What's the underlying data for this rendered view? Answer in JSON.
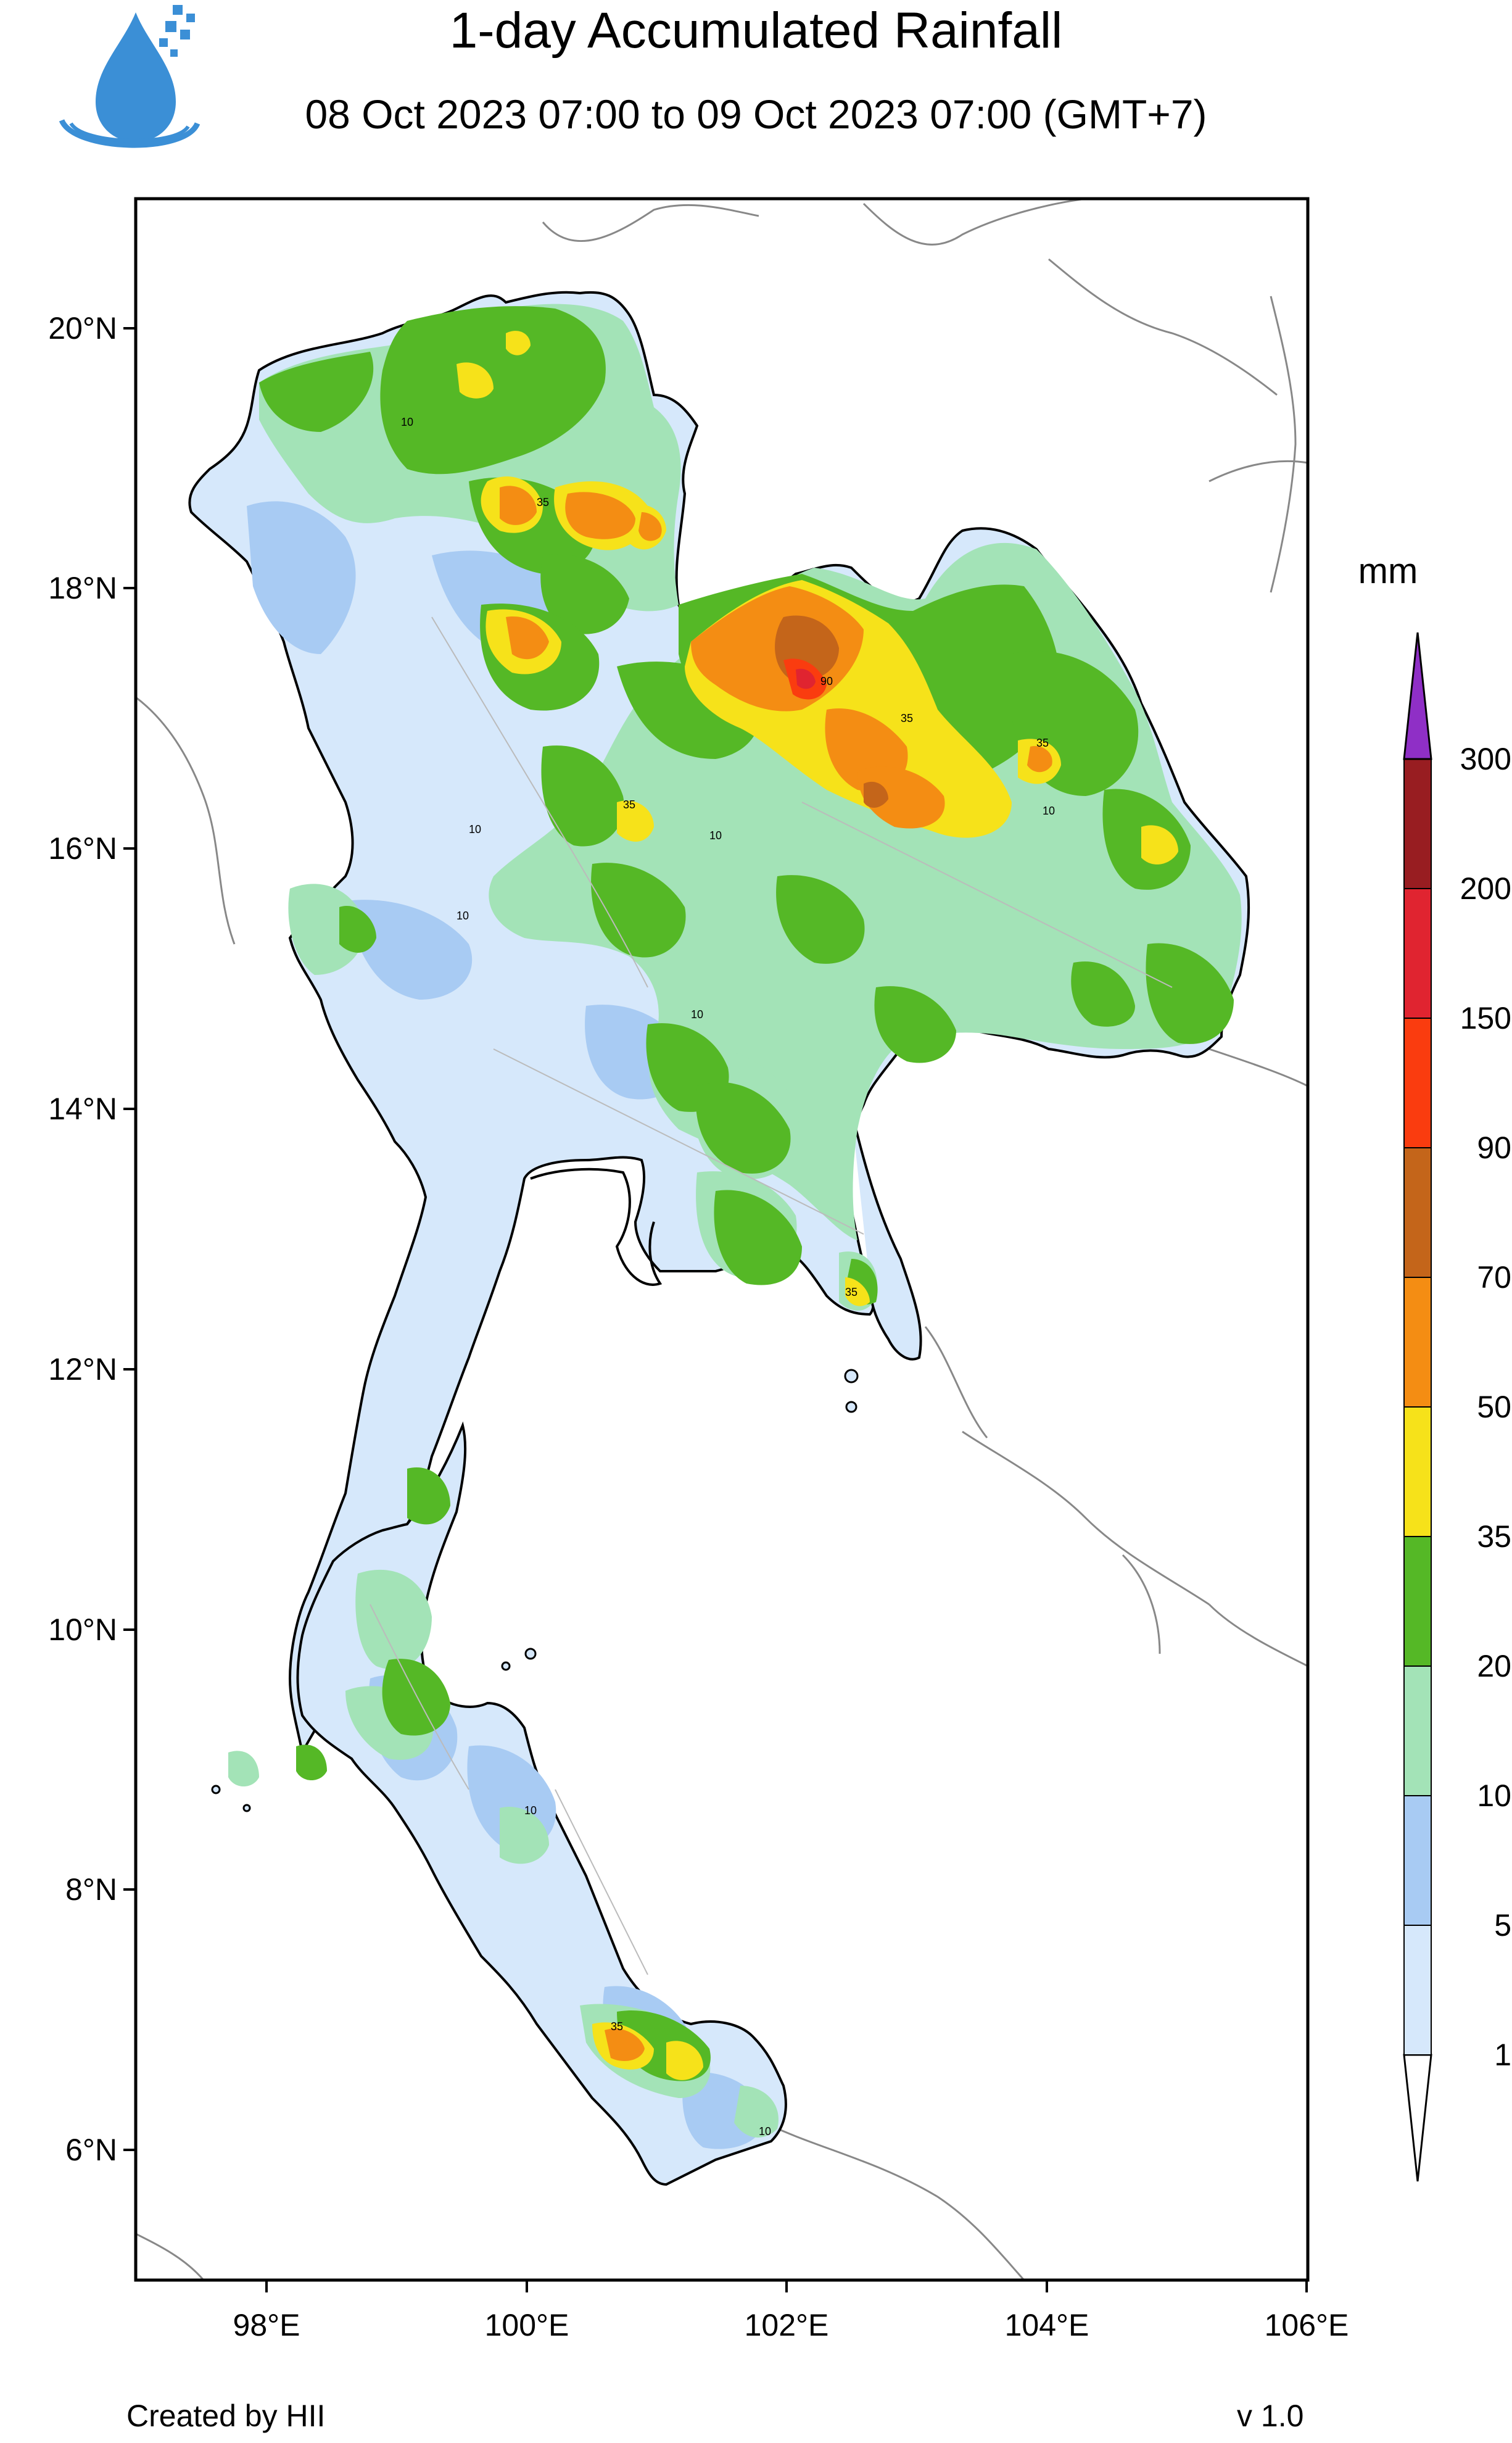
{
  "header": {
    "title": "1-day Accumulated Rainfall",
    "subtitle": "08 Oct 2023 07:00 to 09 Oct 2023 07:00 (GMT+7)"
  },
  "footer": {
    "credit": "Created by HII",
    "version": "v 1.0"
  },
  "legend": {
    "unit": "mm",
    "classes": [
      {
        "label": "1",
        "color": "#d6e8fb"
      },
      {
        "label": "5",
        "color": "#a8cbf3"
      },
      {
        "label": "10",
        "color": "#a3e3b7"
      },
      {
        "label": "20",
        "color": "#55b826"
      },
      {
        "label": "35",
        "color": "#f6e21a"
      },
      {
        "label": "50",
        "color": "#f48d13"
      },
      {
        "label": "70",
        "color": "#c4651a"
      },
      {
        "label": "90",
        "color": "#fa3c0f"
      },
      {
        "label": "150",
        "color": "#e02430"
      },
      {
        "label": "200",
        "color": "#981d21"
      },
      {
        "label": "300",
        "color": ""
      }
    ],
    "top_color": "#8f2fc6"
  },
  "axes": {
    "lon_ticks": [
      "98°E",
      "100°E",
      "102°E",
      "104°E",
      "106°E"
    ],
    "lat_ticks": [
      "20°N",
      "18°N",
      "16°N",
      "14°N",
      "12°N",
      "10°N",
      "8°N",
      "6°N"
    ]
  },
  "map": {
    "contour_labels": [
      "10",
      "35",
      "90"
    ]
  }
}
